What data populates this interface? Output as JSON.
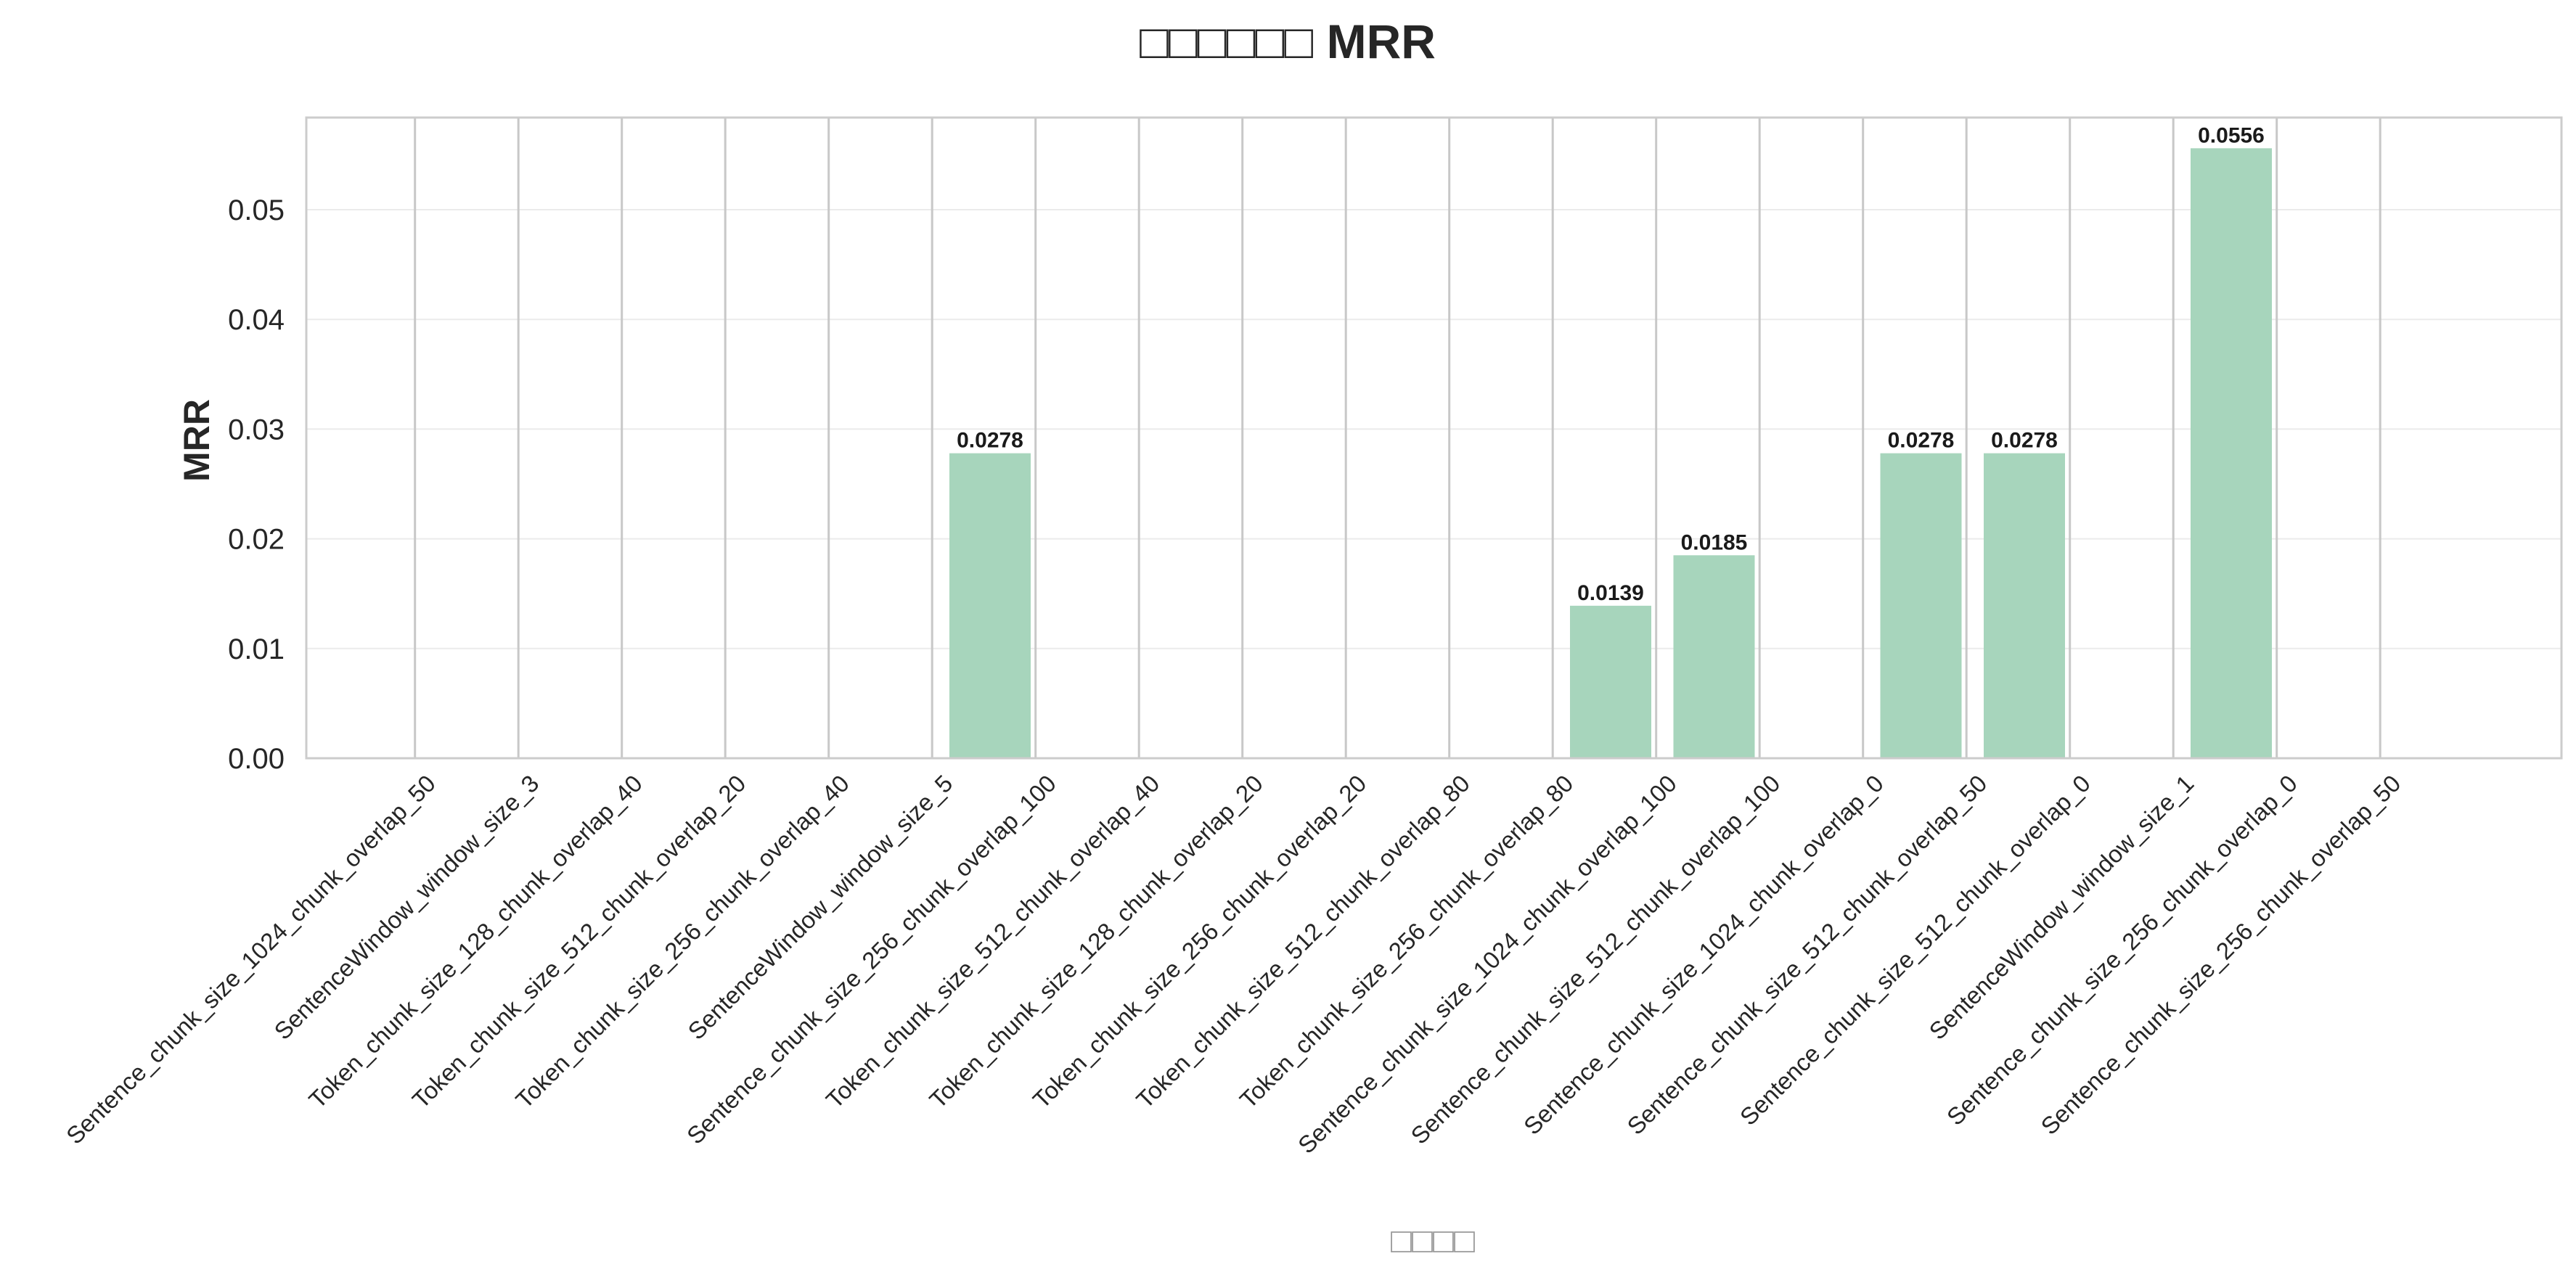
{
  "chart_data": {
    "type": "bar",
    "title": "□□□□□□ MRR",
    "xlabel": "□□□□",
    "ylabel": "MRR",
    "ylim": [
      0,
      0.0584
    ],
    "yticks": [
      0.0,
      0.01,
      0.02,
      0.03,
      0.04,
      0.05
    ],
    "ytick_labels": [
      "0.00",
      "0.01",
      "0.02",
      "0.03",
      "0.04",
      "0.05"
    ],
    "grid": true,
    "bar_color": "#a7d5bc",
    "categories": [
      "Sentence_chunk_size_1024_chunk_overlap_50",
      "SentenceWindow_window_size_3",
      "Token_chunk_size_128_chunk_overlap_40",
      "Token_chunk_size_512_chunk_overlap_20",
      "Token_chunk_size_256_chunk_overlap_40",
      "SentenceWindow_window_size_5",
      "Sentence_chunk_size_256_chunk_overlap_100",
      "Token_chunk_size_512_chunk_overlap_40",
      "Token_chunk_size_128_chunk_overlap_20",
      "Token_chunk_size_256_chunk_overlap_20",
      "Token_chunk_size_512_chunk_overlap_80",
      "Token_chunk_size_256_chunk_overlap_80",
      "Sentence_chunk_size_1024_chunk_overlap_100",
      "Sentence_chunk_size_512_chunk_overlap_100",
      "Sentence_chunk_size_1024_chunk_overlap_0",
      "Sentence_chunk_size_512_chunk_overlap_50",
      "Sentence_chunk_size_512_chunk_overlap_0",
      "SentenceWindow_window_size_1",
      "Sentence_chunk_size_256_chunk_overlap_0",
      "Sentence_chunk_size_256_chunk_overlap_50"
    ],
    "values": [
      0,
      0,
      0,
      0,
      0,
      0,
      0.0278,
      0,
      0,
      0,
      0,
      0,
      0.0139,
      0.0185,
      0,
      0.0278,
      0.0278,
      0,
      0.0556,
      0
    ],
    "value_labels": [
      "",
      "",
      "",
      "",
      "",
      "",
      "0.0278",
      "",
      "",
      "",
      "",
      "",
      "0.0139",
      "0.0185",
      "",
      "0.0278",
      "0.0278",
      "",
      "0.0556",
      ""
    ]
  }
}
